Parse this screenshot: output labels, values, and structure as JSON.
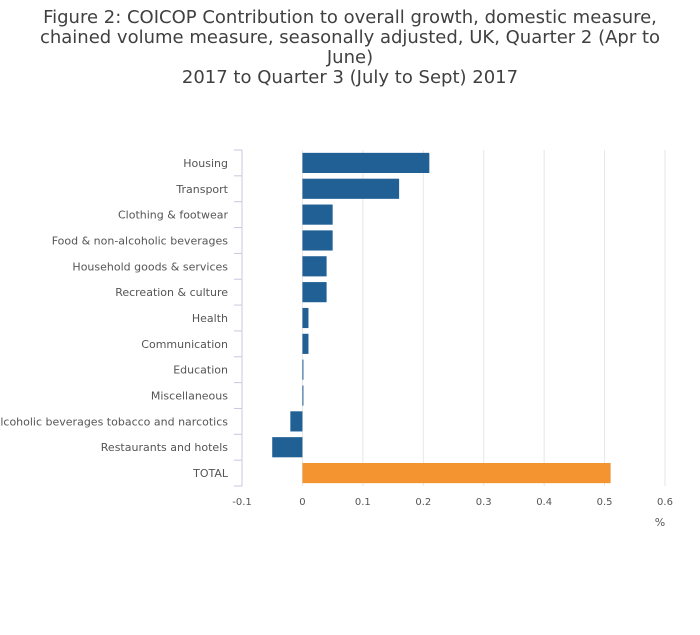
{
  "title_lines": [
    "Figure 2: COICOP Contribution to overall growth, domestic measure,",
    "chained volume measure, seasonally adjusted, UK, Quarter 2 (Apr to June)",
    "2017 to Quarter 3 (July to Sept) 2017"
  ],
  "colors": {
    "bar": "#206095",
    "total_bar": "#f39431",
    "grid": "#e6e6e6",
    "axis": "#c8c8dc"
  },
  "chart_data": {
    "type": "bar",
    "orientation": "horizontal",
    "title": "Figure 2: COICOP Contribution to overall growth, domestic measure, chained volume measure, seasonally adjusted, UK, Quarter 2 (Apr to June) 2017 to Quarter 3 (July to Sept) 2017",
    "categories": [
      "Housing",
      "Transport",
      "Clothing & footwear",
      "Food & non-alcoholic beverages",
      "Household goods & services",
      "Recreation & culture",
      "Health",
      "Communication",
      "Education",
      "Miscellaneous",
      "Alcoholic beverages tobacco and narcotics",
      "Restaurants and hotels",
      "TOTAL"
    ],
    "values": [
      0.21,
      0.16,
      0.05,
      0.05,
      0.04,
      0.04,
      0.01,
      0.01,
      0.0,
      0.0,
      -0.02,
      -0.05,
      0.51
    ],
    "highlight_category": "TOTAL",
    "xlim": [
      -0.1,
      0.6
    ],
    "xticks": [
      "-0.1",
      "0",
      "0.1",
      "0.2",
      "0.3",
      "0.4",
      "0.5",
      "0.6"
    ],
    "xunit": "%",
    "grid": true
  }
}
